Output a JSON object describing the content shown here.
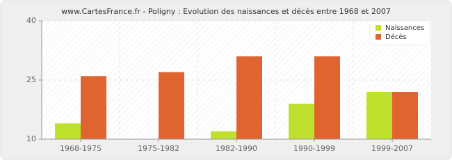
{
  "chart_data": {
    "type": "bar",
    "title": "www.CartesFrance.fr - Poligny : Evolution des naissances et décès entre 1968 et 2007",
    "categories": [
      "1968-1975",
      "1975-1982",
      "1982-1990",
      "1990-1999",
      "1999-2007"
    ],
    "series": [
      {
        "name": "Naissances",
        "color": "#bde12c",
        "values": [
          14,
          10,
          12,
          19,
          22
        ]
      },
      {
        "name": "Décès",
        "color": "#e06430",
        "values": [
          26,
          27,
          31,
          31,
          22
        ]
      }
    ],
    "ylim": [
      10,
      40
    ],
    "yticks": [
      10,
      25,
      40
    ],
    "grid": true,
    "legend": "top-right"
  }
}
